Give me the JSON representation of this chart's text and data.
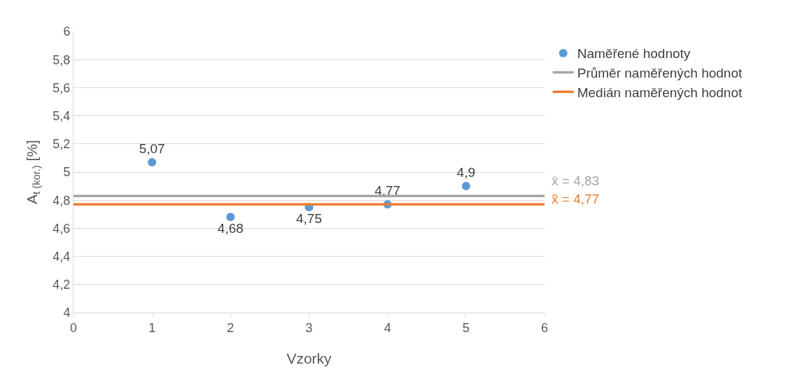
{
  "chart_data": {
    "type": "scatter",
    "xlabel": "Vzorky",
    "ylabel": "A$_{t (kor.)}$ [%]",
    "xlim": [
      0,
      6
    ],
    "xticks": [
      0,
      1,
      2,
      3,
      4,
      5,
      6
    ],
    "ylim": [
      4,
      6
    ],
    "yticks": [
      4,
      {
        "value": 4.2,
        "label": "4,2"
      },
      {
        "value": 4.4,
        "label": "4,4"
      },
      {
        "value": 4.6,
        "label": "4,6"
      },
      {
        "value": 4.8,
        "label": "4,8"
      },
      5,
      {
        "value": 5.2,
        "label": "5,2"
      },
      {
        "value": 5.4,
        "label": "5,4"
      },
      {
        "value": 5.6,
        "label": "5,6"
      },
      {
        "value": 5.8,
        "label": "5,8"
      },
      6
    ],
    "grid": "y",
    "legend": "right",
    "series": [
      {
        "name": "Naměřené hodnoty",
        "marker": "circle",
        "color": "#5b9bd5",
        "x": [
          1,
          2,
          3,
          4,
          5
        ],
        "values": [
          5.07,
          4.68,
          4.75,
          4.77,
          4.9
        ],
        "value_labels": [
          "5,07",
          "4,68",
          "4,75",
          "4,77",
          "4,9"
        ]
      },
      {
        "name": "Průměr naměřených hodnot",
        "type": "line",
        "color": "#a5a5a5",
        "x": [
          0,
          6
        ],
        "values": [
          4.83,
          4.83
        ],
        "marker": "none"
      },
      {
        "name": "Medián naměřených hodnot",
        "type": "line",
        "color": "#ed7d31",
        "x": [
          0,
          6
        ],
        "values": [
          4.77,
          4.77
        ],
        "marker": "none"
      }
    ],
    "annotations": [
      "x̄ = 4,83",
      "x̃ = 4,77"
    ]
  }
}
